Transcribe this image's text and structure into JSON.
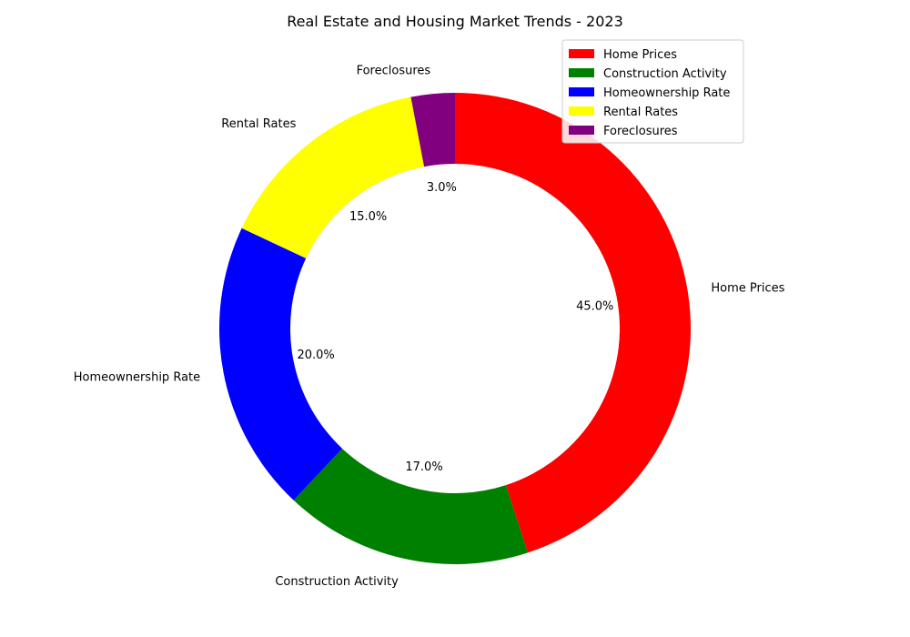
{
  "chart_data": {
    "type": "pie",
    "donut": true,
    "title": "Real Estate and Housing Market Trends - 2023",
    "categories": [
      "Home Prices",
      "Construction Activity",
      "Homeownership Rate",
      "Rental Rates",
      "Foreclosures"
    ],
    "values": [
      45,
      17,
      20,
      15,
      3
    ],
    "percent_labels": [
      "45.0%",
      "17.0%",
      "20.0%",
      "15.0%",
      "3.0%"
    ],
    "colors": [
      "#ff0000",
      "#008000",
      "#0000ff",
      "#ffff00",
      "#800080"
    ],
    "start_angle": "90deg",
    "direction": "clockwise",
    "legend": {
      "placement": "top-right",
      "entries": [
        "Home Prices",
        "Construction Activity",
        "Homeownership Rate",
        "Rental Rates",
        "Foreclosures"
      ]
    }
  }
}
